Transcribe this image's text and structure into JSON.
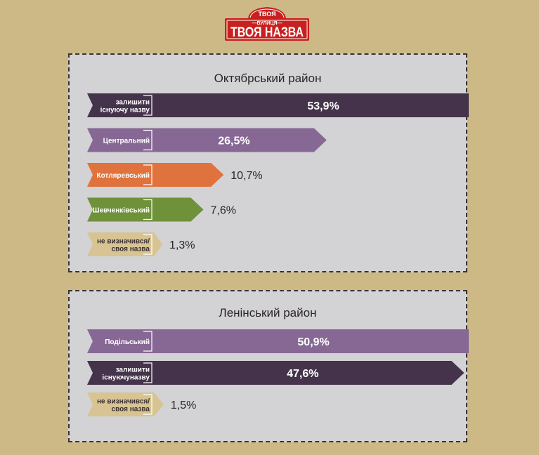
{
  "logo": {
    "top_text": "ТВОЯ",
    "middle_text": "—ВУЛИЦЯ—",
    "main_text": "ТВОЯ НАЗВА",
    "color": "#c8201e"
  },
  "colors": {
    "dark_purple": "#45334b",
    "mid_purple": "#876894",
    "orange": "#e0733d",
    "green": "#6f913a",
    "tan": "#d7c492",
    "panel_bg": "#d3d2d4",
    "page_bg": "#cdb985"
  },
  "chart_data": [
    {
      "type": "bar",
      "title": "Октябрський район",
      "unit": "%",
      "categories": [
        "залишити існуючу назву",
        "Центральний",
        "Котляревський",
        "Шевченківський",
        "не визначився/ своя назва"
      ],
      "label_lines": [
        [
          "залишити",
          "існуючу назву"
        ],
        [
          "Центральний"
        ],
        [
          "Котляревський"
        ],
        [
          "Шевченківський"
        ],
        [
          "не визначився/",
          "своя назва"
        ]
      ],
      "values": [
        53.9,
        26.5,
        10.7,
        7.6,
        1.3
      ],
      "value_labels": [
        "53,9%",
        "26,5%",
        "10,7%",
        "7,6%",
        "1,3%"
      ],
      "colors": [
        "#45334b",
        "#876894",
        "#e0733d",
        "#6f913a",
        "#d7c492"
      ]
    },
    {
      "type": "bar",
      "title": "Ленінський район",
      "unit": "%",
      "categories": [
        "Подільський",
        "залишити існуючуназву",
        "не визначився/ своя назва"
      ],
      "label_lines": [
        [
          "Подільський"
        ],
        [
          "залишити",
          "існуючуназву"
        ],
        [
          "не визначився/",
          "своя назва"
        ]
      ],
      "values": [
        50.9,
        47.6,
        1.5
      ],
      "value_labels": [
        "50,9%",
        "47,6%",
        "1,5%"
      ],
      "colors": [
        "#876894",
        "#45334b",
        "#d7c492"
      ]
    }
  ]
}
